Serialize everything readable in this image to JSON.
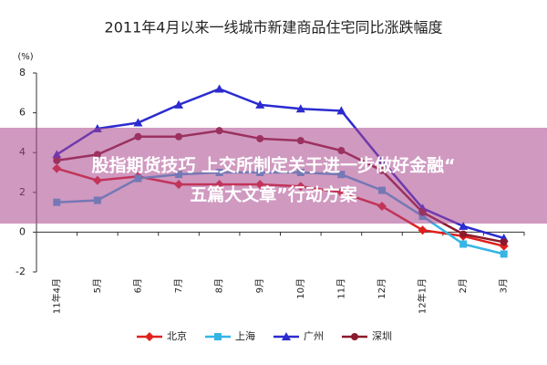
{
  "chart_data": {
    "type": "line",
    "title": "2011年4月以来一线城市新建商品住宅同比涨跌幅度",
    "y_label": "(%)",
    "categories": [
      "11年4月",
      "5月",
      "6月",
      "7月",
      "8月",
      "9月",
      "10月",
      "11月",
      "12月",
      "12年1月",
      "2月",
      "3月"
    ],
    "series": [
      {
        "name": "北京",
        "color": "#e0201c",
        "marker": "diamond",
        "values": [
          3.2,
          2.6,
          2.8,
          2.4,
          2.4,
          2.4,
          2.3,
          2.0,
          1.3,
          0.1,
          -0.2,
          -0.7
        ]
      },
      {
        "name": "上海",
        "color": "#35b5e6",
        "marker": "square",
        "values": [
          1.5,
          1.6,
          2.7,
          2.9,
          3.0,
          3.0,
          3.0,
          2.9,
          2.1,
          0.8,
          -0.6,
          -1.1
        ]
      },
      {
        "name": "广州",
        "color": "#2b2bd0",
        "marker": "triangle",
        "values": [
          3.9,
          5.2,
          5.5,
          6.4,
          7.2,
          6.4,
          6.2,
          6.1,
          3.6,
          1.2,
          0.3,
          -0.3
        ]
      },
      {
        "name": "深圳",
        "color": "#8b1a2a",
        "marker": "circle",
        "values": [
          3.6,
          3.9,
          4.8,
          4.8,
          5.1,
          4.7,
          4.6,
          4.1,
          3.1,
          1.0,
          -0.1,
          -0.5
        ]
      }
    ],
    "ylim": [
      -2,
      8
    ],
    "yticks": [
      -2,
      0,
      2,
      4,
      6,
      8
    ],
    "grid": false,
    "legend": "bottom"
  },
  "banner": [
    "股指期货技巧 上交所制定关于进一步做好金融“",
    "五篇大文章”行动方案"
  ]
}
